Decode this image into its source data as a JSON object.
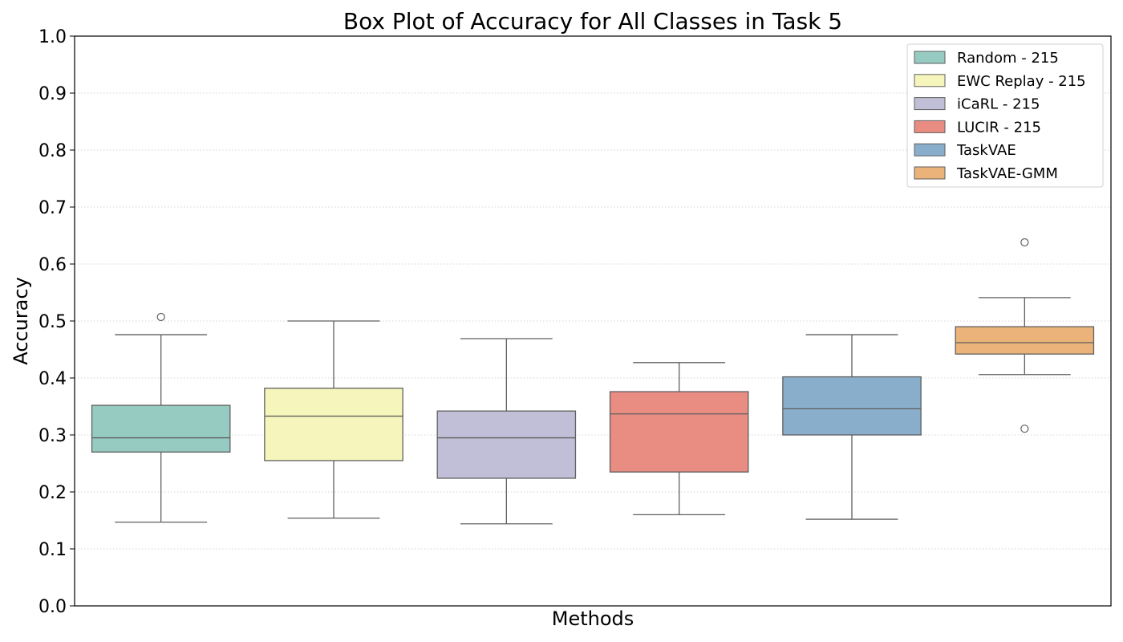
{
  "chart_data": {
    "type": "box",
    "title": "Box Plot of Accuracy for All Classes in Task 5",
    "xlabel": "Methods",
    "ylabel": "Accuracy",
    "ylim": [
      0.0,
      1.0
    ],
    "yticks": [
      "0.0",
      "0.1",
      "0.2",
      "0.3",
      "0.4",
      "0.5",
      "0.6",
      "0.7",
      "0.8",
      "0.9",
      "1.0"
    ],
    "grid": "horizontal dotted",
    "legend_position": "top-right",
    "series": [
      {
        "name": "Random - 215",
        "color": "#96cbc2",
        "whisker_low": 0.147,
        "q1": 0.27,
        "median": 0.295,
        "q3": 0.352,
        "whisker_high": 0.476,
        "outliers": [
          0.507
        ]
      },
      {
        "name": "EWC Replay - 215",
        "color": "#f6f6bc",
        "whisker_low": 0.154,
        "q1": 0.255,
        "median": 0.333,
        "q3": 0.382,
        "whisker_high": 0.5,
        "outliers": []
      },
      {
        "name": "iCaRL - 215",
        "color": "#c1bfd7",
        "whisker_low": 0.144,
        "q1": 0.224,
        "median": 0.295,
        "q3": 0.342,
        "whisker_high": 0.469,
        "outliers": []
      },
      {
        "name": "LUCIR - 215",
        "color": "#e98d82",
        "whisker_low": 0.16,
        "q1": 0.235,
        "median": 0.337,
        "q3": 0.376,
        "whisker_high": 0.427,
        "outliers": []
      },
      {
        "name": "TaskVAE",
        "color": "#89aecb",
        "whisker_low": 0.152,
        "q1": 0.3,
        "median": 0.346,
        "q3": 0.402,
        "whisker_high": 0.476,
        "outliers": []
      },
      {
        "name": "TaskVAE-GMM",
        "color": "#ebb379",
        "whisker_low": 0.406,
        "q1": 0.442,
        "median": 0.462,
        "q3": 0.49,
        "whisker_high": 0.541,
        "outliers": [
          0.638,
          0.311
        ]
      }
    ]
  }
}
